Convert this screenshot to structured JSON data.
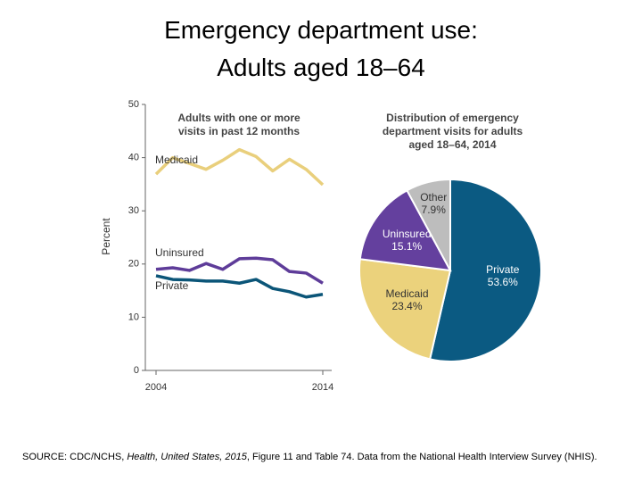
{
  "slide": {
    "title": [
      "Emergency department use:",
      "Adults aged 18–64"
    ],
    "source": [
      "SOURCE: CDC/NCHS, ",
      "Health, United States, 2015",
      ", Figure 11 and Table 74. Data from the National Health Interview Survey (NHIS)."
    ]
  },
  "chart_data": [
    {
      "type": "line",
      "title": "Adults with one or more visits in past 12 months",
      "y_label": "Percent",
      "x": [
        2004,
        2005,
        2006,
        2007,
        2008,
        2009,
        2010,
        2011,
        2012,
        2013,
        2014
      ],
      "xlim": [
        2004,
        2014
      ],
      "xticks": [
        2004,
        2014
      ],
      "ylim": [
        0,
        50
      ],
      "yticks": [
        0,
        10,
        20,
        30,
        40,
        50
      ],
      "series": [
        {
          "name": "Medicaid",
          "color": "#e9cf7c",
          "values": [
            36.9,
            40.0,
            38.9,
            37.8,
            39.5,
            41.5,
            40.2,
            37.5,
            39.7,
            37.8,
            34.9
          ]
        },
        {
          "name": "Uninsured",
          "color": "#5e3c99",
          "values": [
            19.0,
            19.3,
            18.8,
            20.1,
            19.0,
            21.0,
            21.1,
            20.8,
            18.6,
            18.3,
            16.4
          ]
        },
        {
          "name": "Private",
          "color": "#0b5578",
          "values": [
            17.8,
            17.1,
            17.0,
            16.8,
            16.8,
            16.4,
            17.1,
            15.4,
            14.8,
            13.8,
            14.3
          ]
        }
      ]
    },
    {
      "type": "pie",
      "title": "Distribution of emergency department visits for adults aged 18–64, 2014",
      "categories": [
        "Private",
        "Medicaid",
        "Uninsured",
        "Other"
      ],
      "values": [
        53.6,
        23.4,
        15.1,
        7.9
      ],
      "value_labels": [
        "53.6%",
        "23.4%",
        "15.1%",
        "7.9%"
      ],
      "colors": [
        "#0b5a82",
        "#ebd27c",
        "#64409e",
        "#bdbdbd"
      ]
    }
  ]
}
